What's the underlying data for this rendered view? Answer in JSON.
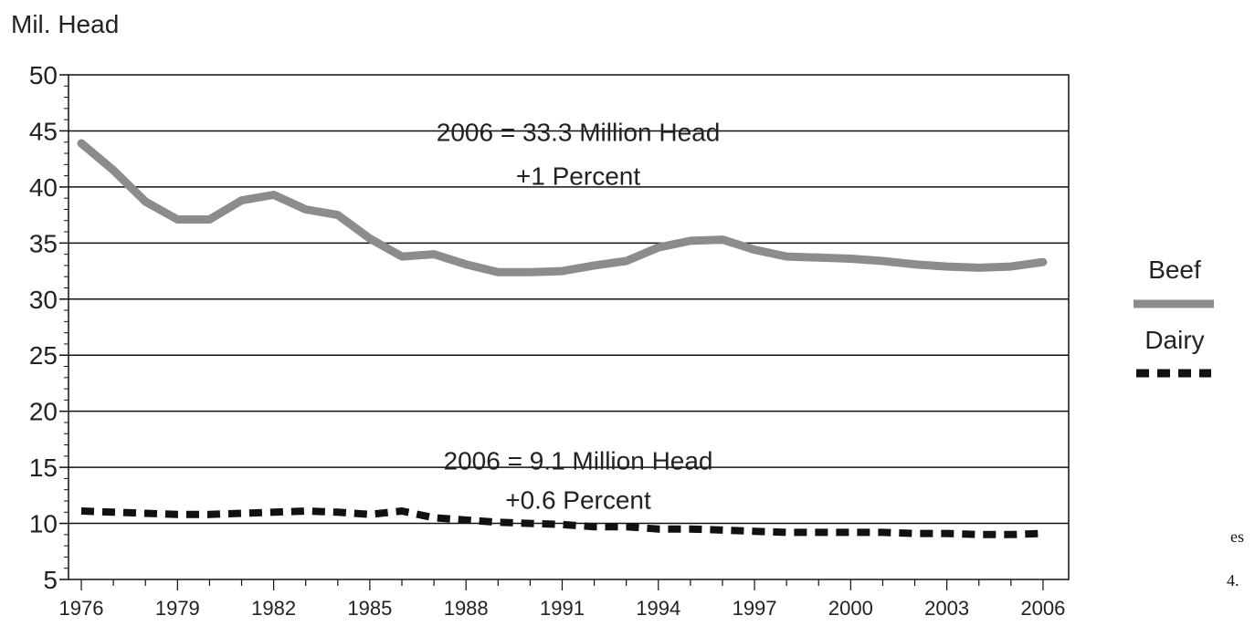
{
  "chart_data": {
    "type": "line",
    "ylabel": "Mil. Head",
    "ylim": [
      5,
      50
    ],
    "yticks": [
      5,
      10,
      15,
      20,
      25,
      30,
      35,
      40,
      45,
      50
    ],
    "xlim": [
      1976,
      2006
    ],
    "xticks": [
      1976,
      1979,
      1982,
      1985,
      1988,
      1991,
      1994,
      1997,
      2000,
      2003,
      2006
    ],
    "grid": "horizontal",
    "legend_position": "right",
    "x": [
      1976,
      1977,
      1978,
      1979,
      1980,
      1981,
      1982,
      1983,
      1984,
      1985,
      1986,
      1987,
      1988,
      1989,
      1990,
      1991,
      1992,
      1993,
      1994,
      1995,
      1996,
      1997,
      1998,
      1999,
      2000,
      2001,
      2002,
      2003,
      2004,
      2005,
      2006
    ],
    "series": [
      {
        "name": "Beef",
        "color": "#8c8c8c",
        "style": "solid",
        "values": [
          43.9,
          41.5,
          38.7,
          37.1,
          37.1,
          38.8,
          39.3,
          38.0,
          37.5,
          35.4,
          33.8,
          34.0,
          33.1,
          32.4,
          32.4,
          32.5,
          33.0,
          33.4,
          34.6,
          35.2,
          35.3,
          34.4,
          33.8,
          33.7,
          33.6,
          33.4,
          33.1,
          32.9,
          32.8,
          32.9,
          33.3
        ]
      },
      {
        "name": "Dairy",
        "color": "#111111",
        "style": "dashed",
        "values": [
          11.1,
          11.0,
          10.9,
          10.8,
          10.8,
          10.9,
          11.0,
          11.1,
          11.0,
          10.8,
          11.1,
          10.5,
          10.3,
          10.1,
          10.0,
          9.9,
          9.7,
          9.7,
          9.5,
          9.5,
          9.4,
          9.3,
          9.2,
          9.2,
          9.2,
          9.2,
          9.1,
          9.1,
          9.0,
          9.0,
          9.1
        ]
      }
    ],
    "annotations": [
      {
        "lines": [
          "2006 = 33.3 Million Head",
          "+1 Percent"
        ],
        "x": 1991.5,
        "y": 44.9,
        "line_step": 3.9
      },
      {
        "lines": [
          "2006 = 9.1 Million Head",
          "+0.6 Percent"
        ],
        "x": 1991.5,
        "y": 15.6,
        "line_step": 3.5
      }
    ]
  },
  "stray_text": [
    "es",
    "4."
  ]
}
